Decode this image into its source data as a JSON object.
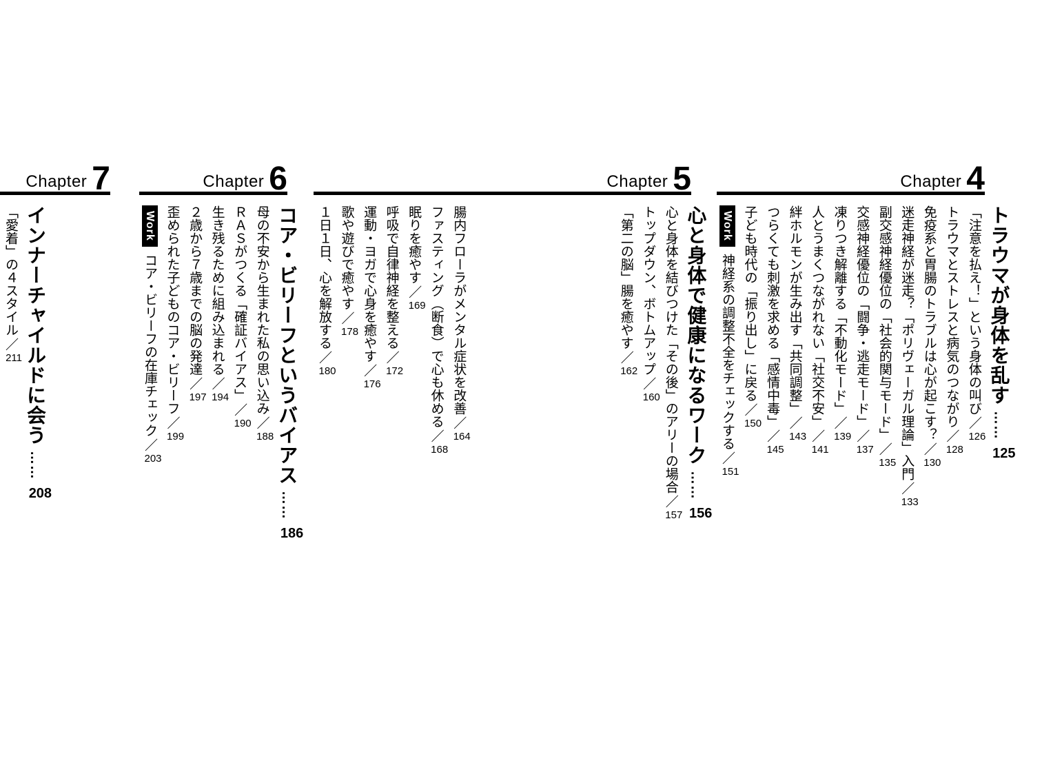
{
  "separator": "／",
  "chapters": [
    {
      "label": "Chapter",
      "number": "4",
      "title": {
        "text": "トラウマが身体を乱す",
        "leader": "……",
        "page": "125"
      },
      "entries": [
        {
          "text": "「注意を払え！」という身体の叫び",
          "page": "126"
        },
        {
          "text": "トラウマとストレスと病気のつながり",
          "page": "128"
        },
        {
          "text": "免疫系と胃腸のトラブルは心が起こす？",
          "page": "130"
        },
        {
          "text": "迷走神経が迷走？「ポリヴェーガル理論」入門",
          "page": "133"
        },
        {
          "text": "副交感神経優位の「社会的関与モード」",
          "page": "135"
        },
        {
          "text": "交感神経優位の「闘争・逃走モード」",
          "page": "137"
        },
        {
          "text": "凍りつき解離する「不動化モード」",
          "page": "139"
        },
        {
          "text": "人とうまくつながれない「社交不安」",
          "page": "141"
        },
        {
          "text": "絆ホルモンが生み出す「共同調整」",
          "page": "143"
        },
        {
          "text": "つらくても刺激を求める「感情中毒」",
          "page": "145"
        },
        {
          "text": "子ども時代の「振り出し」に戻る",
          "page": "150"
        },
        {
          "badge": "Work",
          "text": "神経系の調整不全をチェックする",
          "page": "151"
        }
      ]
    },
    {
      "label": "Chapter",
      "number": "5",
      "title": {
        "text": "心と身体で健康になるワーク",
        "leader": "……",
        "page": "156"
      },
      "entries": [
        {
          "text": "心と身体を結びつけた「その後」のアリーの場合",
          "page": "157"
        },
        {
          "text": "トップダウン、ボトムアップ",
          "page": "160"
        },
        {
          "text": "「第二の脳」腸を癒やす",
          "page": "162"
        },
        {
          "text": "腸内フローラがメンタル症状を改善",
          "page": "164",
          "gap_before": true
        },
        {
          "text": "ファスティング（断食）で心も休める",
          "page": "168"
        },
        {
          "text": "眠りを癒やす",
          "page": "169"
        },
        {
          "text": "呼吸で自律神経を整える",
          "page": "172"
        },
        {
          "text": "運動・ヨガで心身を癒やす",
          "page": "176"
        },
        {
          "text": "歌や遊びで癒やす",
          "page": "178"
        },
        {
          "text": "１日１日、心を解放する",
          "page": "180"
        }
      ]
    },
    {
      "label": "Chapter",
      "number": "6",
      "title": {
        "text": "コア・ビリーフというバイアス",
        "leader": "……",
        "page": "186"
      },
      "entries": [
        {
          "text": "母の不安から生まれた私の思い込み",
          "page": "188"
        },
        {
          "text": "ＲＡＳがつくる「確証バイアス」",
          "page": "190"
        },
        {
          "text": "生き残るために組み込まれる",
          "page": "194"
        },
        {
          "text": "２歳から７歳までの脳の発達",
          "page": "197"
        },
        {
          "text": "歪められた子どものコア・ビリーフ",
          "page": "199"
        },
        {
          "badge": "Work",
          "text": "コア・ビリーフの在庫チェック",
          "page": "203"
        }
      ]
    },
    {
      "label": "Chapter",
      "number": "7",
      "title": {
        "text": "インナーチャイルドに会う",
        "leader": "……",
        "page": "208"
      },
      "entries": [
        {
          "text": "「愛着」の４スタイル",
          "page": "211"
        }
      ]
    }
  ]
}
